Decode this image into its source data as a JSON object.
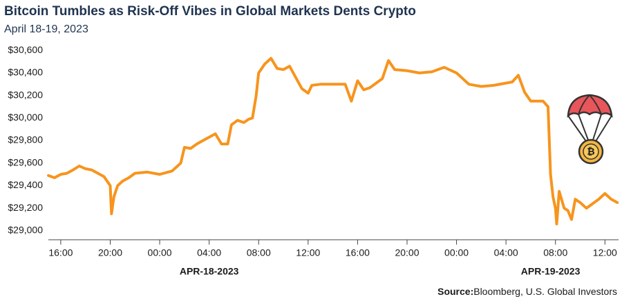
{
  "chart_data": {
    "type": "line",
    "title": "Bitcoin Tumbles as Risk-Off Vibes in Global Markets Dents Crypto",
    "subtitle": "April 18-19, 2023",
    "x": [
      -1,
      -0.5,
      0,
      0.5,
      1,
      1.5,
      2,
      2.5,
      3,
      3.5,
      4,
      4.1,
      4.3,
      4.6,
      5,
      5.5,
      6,
      7,
      8,
      9,
      9.7,
      10,
      10.5,
      11,
      11.5,
      12,
      12.5,
      13,
      13.5,
      13.8,
      14.3,
      14.8,
      15.2,
      15.5,
      15.8,
      16,
      16.5,
      17,
      17.5,
      18,
      18.5,
      19,
      19.5,
      20,
      20.3,
      21,
      22,
      23,
      23.5,
      24,
      24.5,
      25,
      26,
      26.5,
      27,
      28,
      29,
      30,
      31,
      32,
      33,
      34,
      35,
      36,
      36.5,
      37,
      37.5,
      38,
      39,
      39.4,
      39.6,
      39.8,
      40,
      40.1,
      40.3,
      40.7,
      41,
      41.3,
      41.6,
      42,
      42.5,
      43,
      43.5,
      44,
      44.5,
      45
    ],
    "series": [
      {
        "color": "#f7941d",
        "values": [
          29490,
          29470,
          29500,
          29510,
          29540,
          29575,
          29550,
          29540,
          29510,
          29480,
          29400,
          29150,
          29300,
          29400,
          29440,
          29470,
          29510,
          29520,
          29500,
          29530,
          29600,
          29740,
          29730,
          29770,
          29800,
          29830,
          29860,
          29770,
          29770,
          29940,
          29980,
          29960,
          29990,
          30000,
          30200,
          30400,
          30480,
          30530,
          30440,
          30430,
          30460,
          30360,
          30260,
          30220,
          30290,
          30300,
          30300,
          30300,
          30150,
          30330,
          30250,
          30270,
          30350,
          30510,
          30430,
          30420,
          30400,
          30410,
          30450,
          30400,
          30300,
          30280,
          30290,
          30310,
          30320,
          30380,
          30230,
          30150,
          30150,
          30100,
          29500,
          29300,
          29200,
          29060,
          29350,
          29200,
          29180,
          29100,
          29280,
          29250,
          29200,
          29240,
          29280,
          29330,
          29280,
          29250
        ]
      }
    ],
    "xlim": [
      -1,
      45.1
    ],
    "xticks": [
      {
        "value": 0,
        "label": "16:00"
      },
      {
        "value": 4,
        "label": "20:00"
      },
      {
        "value": 8,
        "label": "00:00"
      },
      {
        "value": 12,
        "label": "04:00"
      },
      {
        "value": 16,
        "label": "08:00"
      },
      {
        "value": 20,
        "label": "12:00"
      },
      {
        "value": 24,
        "label": "16:00"
      },
      {
        "value": 28,
        "label": "20:00"
      },
      {
        "value": 32,
        "label": "00:00"
      },
      {
        "value": 36,
        "label": "04:00"
      },
      {
        "value": 40,
        "label": "08:00"
      },
      {
        "value": 44,
        "label": "12:00"
      }
    ],
    "ylim": [
      28920,
      30650
    ],
    "yticks": [
      {
        "value": 29000,
        "label": "$29,000"
      },
      {
        "value": 29200,
        "label": "$29,200"
      },
      {
        "value": 29400,
        "label": "$29,400"
      },
      {
        "value": 29600,
        "label": "$29,600"
      },
      {
        "value": 29800,
        "label": "$29,800"
      },
      {
        "value": 30000,
        "label": "$30,000"
      },
      {
        "value": 30200,
        "label": "$30,200"
      },
      {
        "value": 30400,
        "label": "$30,400"
      },
      {
        "value": 30600,
        "label": "$30,600"
      }
    ],
    "grid": false,
    "date_labels": [
      {
        "x": 12,
        "text": "APR-18-2023"
      },
      {
        "x": 39.6,
        "text": "APR-19-2023"
      }
    ],
    "source_label": "Source:",
    "source": "Bloomberg, U.S. Global Investors"
  }
}
